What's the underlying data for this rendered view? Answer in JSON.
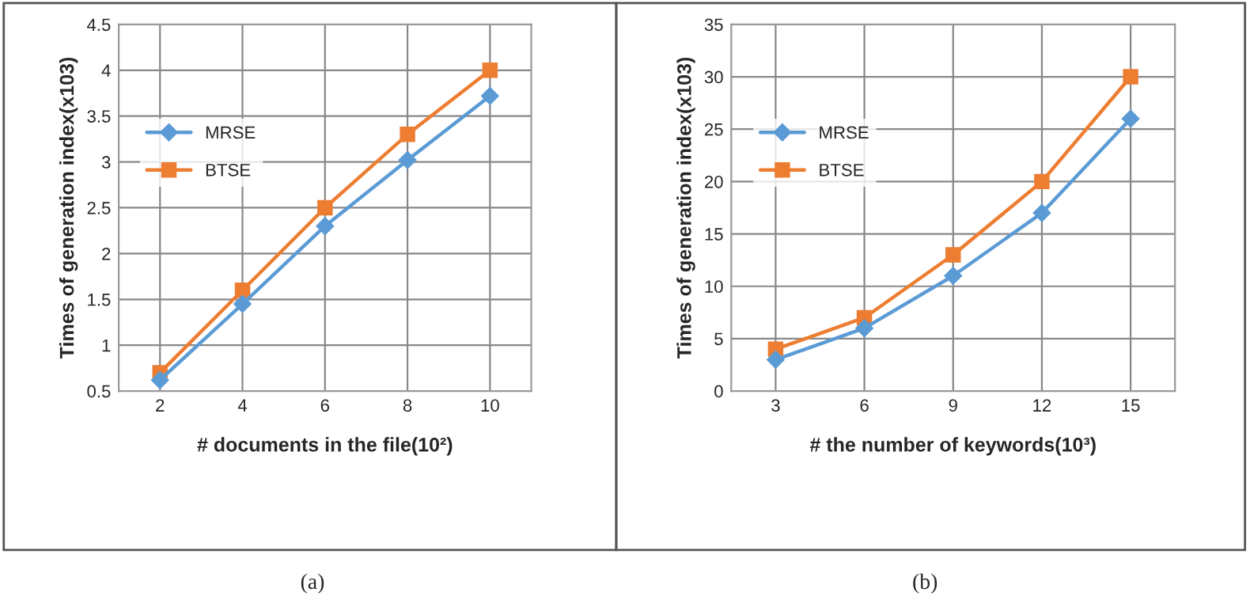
{
  "chart_data": [
    {
      "type": "line",
      "xlabel": "# documents in the file(10²)",
      "ylabel": "Times of generation index(x103)",
      "categories": [
        "2",
        "4",
        "6",
        "8",
        "10"
      ],
      "series": [
        {
          "name": "MRSE",
          "color": "#5b9bd5",
          "values": [
            0.62,
            1.45,
            2.3,
            3.02,
            3.72
          ],
          "marker": "diamond"
        },
        {
          "name": "BTSE",
          "color": "#ed7d31",
          "values": [
            0.7,
            1.6,
            2.5,
            3.3,
            4.0
          ],
          "marker": "square"
        }
      ],
      "ylim": [
        0.5,
        4.5
      ],
      "yticks": [
        0.5,
        1,
        1.5,
        2,
        2.5,
        3,
        3.5,
        4,
        4.5
      ],
      "grid": true,
      "legend": "left",
      "annotations": [
        "(a)"
      ]
    },
    {
      "type": "line",
      "xlabel": "# the number of keywords(10³)",
      "ylabel": "Times of generation index(x103)",
      "categories": [
        "3",
        "6",
        "9",
        "12",
        "15"
      ],
      "series": [
        {
          "name": "MRSE",
          "color": "#5b9bd5",
          "values": [
            3,
            6,
            11,
            17,
            26
          ],
          "marker": "diamond"
        },
        {
          "name": "BTSE",
          "color": "#ed7d31",
          "values": [
            4,
            7,
            13,
            20,
            30
          ],
          "marker": "square"
        }
      ],
      "ylim": [
        0,
        35
      ],
      "yticks": [
        0,
        5,
        10,
        15,
        20,
        25,
        30,
        35
      ],
      "grid": true,
      "legend": "left",
      "annotations": [
        "(b)"
      ]
    }
  ]
}
